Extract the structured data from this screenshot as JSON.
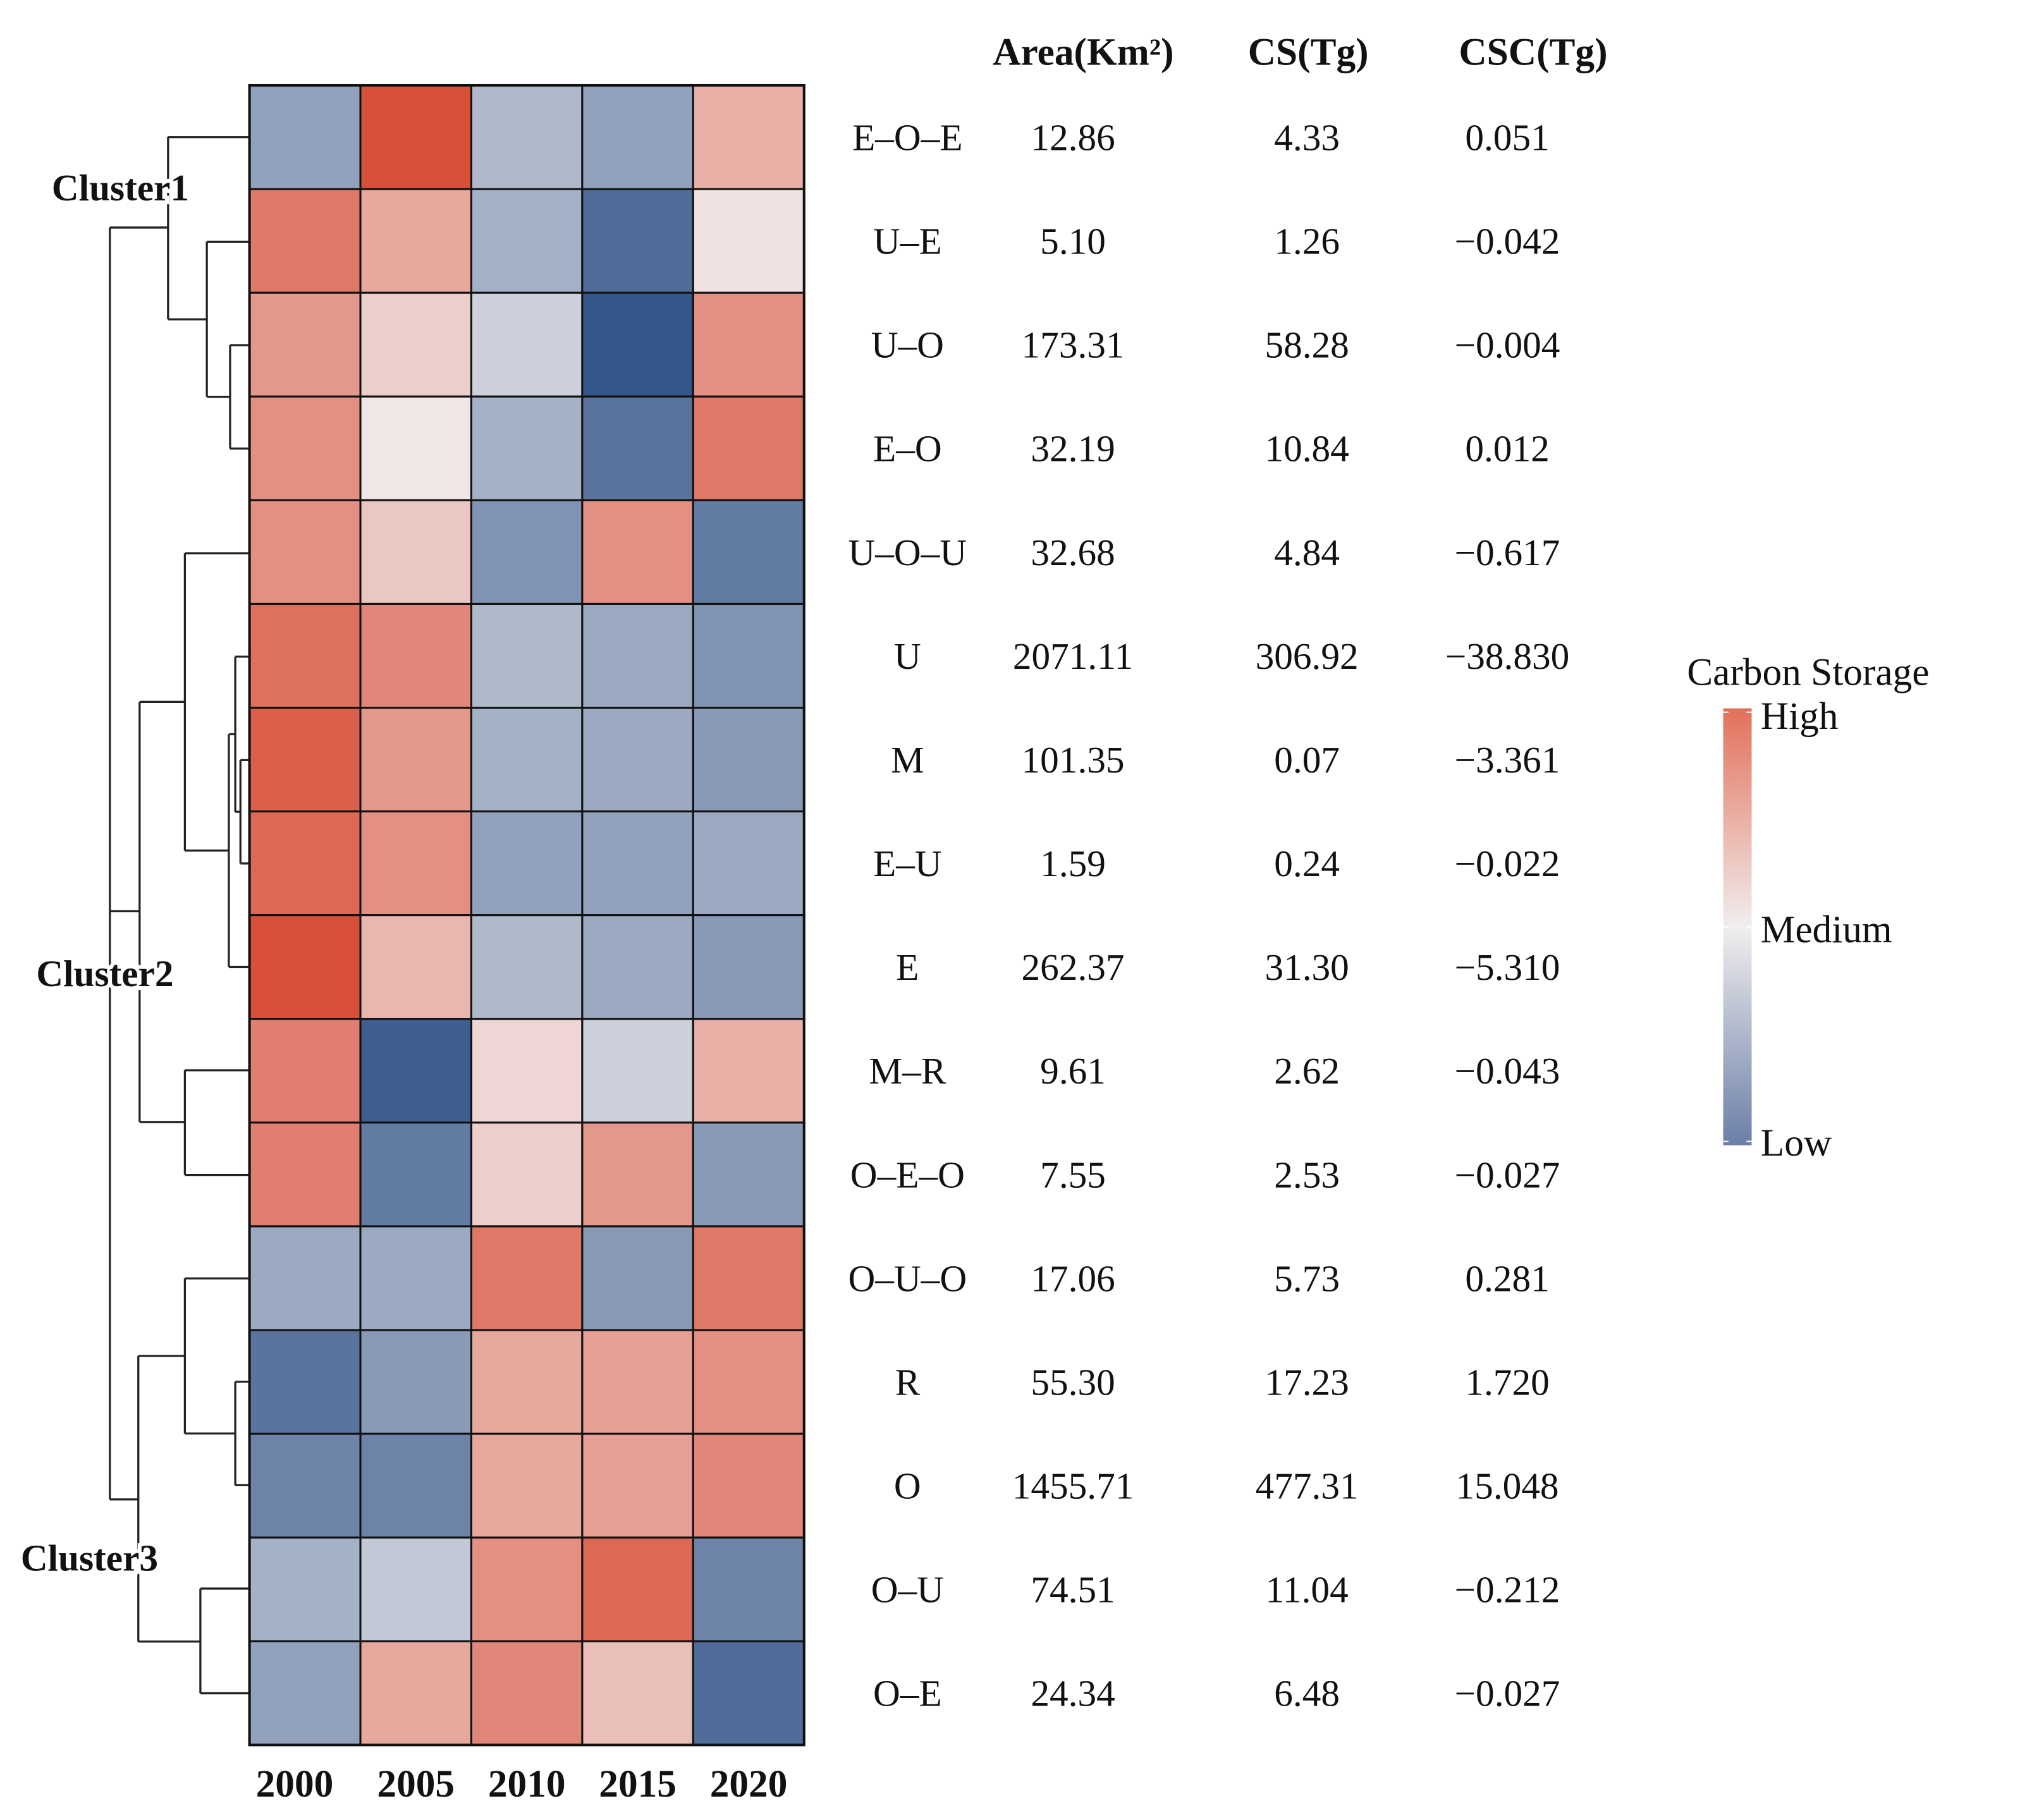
{
  "chart_data": {
    "type": "heatmap",
    "title": "",
    "xlabel": "",
    "ylabel": "",
    "x_categories": [
      "2000",
      "2005",
      "2010",
      "2015",
      "2020"
    ],
    "y_categories": [
      "E–O–E",
      "U–E",
      "U–O",
      "E–O",
      "U–O–U",
      "U",
      "M",
      "E–U",
      "E",
      "M–R",
      "O–E–O",
      "O–U–O",
      "R",
      "O",
      "O–U",
      "O–E"
    ],
    "value_scale": "relative carbon storage, -1 = Low, 0 = Medium, 1 = High (estimated from colour)",
    "values": [
      [
        -0.5,
        1.0,
        -0.35,
        -0.5,
        0.4
      ],
      [
        0.75,
        0.45,
        -0.4,
        -0.85,
        0.08
      ],
      [
        0.55,
        0.2,
        -0.2,
        -1.0,
        0.6
      ],
      [
        0.6,
        0.05,
        -0.4,
        -0.8,
        0.75
      ],
      [
        0.6,
        0.25,
        -0.6,
        0.6,
        -0.75
      ],
      [
        0.8,
        0.65,
        -0.35,
        -0.45,
        -0.6
      ],
      [
        0.9,
        0.55,
        -0.4,
        -0.45,
        -0.55
      ],
      [
        0.85,
        0.6,
        -0.5,
        -0.5,
        -0.45
      ],
      [
        1.0,
        0.35,
        -0.35,
        -0.45,
        -0.55
      ],
      [
        0.7,
        -0.95,
        0.15,
        -0.2,
        0.4
      ],
      [
        0.7,
        -0.75,
        0.2,
        0.55,
        -0.55
      ],
      [
        -0.45,
        -0.45,
        0.75,
        -0.55,
        0.75
      ],
      [
        -0.8,
        -0.55,
        0.45,
        0.5,
        0.6
      ],
      [
        -0.7,
        -0.7,
        0.45,
        0.5,
        0.65
      ],
      [
        -0.4,
        -0.25,
        0.6,
        0.85,
        -0.7
      ],
      [
        -0.5,
        0.45,
        0.65,
        0.3,
        -0.85
      ]
    ],
    "clusters": [
      {
        "label": "Cluster1",
        "rows": [
          "E–O–E",
          "U–E",
          "U–O",
          "E–O"
        ]
      },
      {
        "label": "Cluster2",
        "rows": [
          "U–O–U",
          "U",
          "M",
          "E–U",
          "E",
          "M–R",
          "O–E–O"
        ]
      },
      {
        "label": "Cluster3",
        "rows": [
          "O–U–O",
          "R",
          "O",
          "O–U",
          "O–E"
        ]
      }
    ],
    "table": {
      "headers": [
        "Area(Km²)",
        "CS(Tg)",
        "CSC(Tg)"
      ],
      "rows": [
        [
          "12.86",
          "4.33",
          "0.051"
        ],
        [
          "5.10",
          "1.26",
          "−0.042"
        ],
        [
          "173.31",
          "58.28",
          "−0.004"
        ],
        [
          "32.19",
          "10.84",
          "0.012"
        ],
        [
          "32.68",
          "4.84",
          "−0.617"
        ],
        [
          "2071.11",
          "306.92",
          "−38.830"
        ],
        [
          "101.35",
          "0.07",
          "−3.361"
        ],
        [
          "1.59",
          "0.24",
          "−0.022"
        ],
        [
          "262.37",
          "31.30",
          "−5.310"
        ],
        [
          "9.61",
          "2.62",
          "−0.043"
        ],
        [
          "7.55",
          "2.53",
          "−0.027"
        ],
        [
          "17.06",
          "5.73",
          "0.281"
        ],
        [
          "55.30",
          "17.23",
          "1.720"
        ],
        [
          "1455.71",
          "477.31",
          "15.048"
        ],
        [
          "74.51",
          "11.04",
          "−0.212"
        ],
        [
          "24.34",
          "6.48",
          "−0.027"
        ]
      ]
    },
    "legend": {
      "title": "Carbon Storage",
      "high": "High",
      "medium": "Medium",
      "low": "Low",
      "placement": "right",
      "colors": {
        "high": "#d9503a",
        "medium": "#f1eeee",
        "low": "#34568a"
      }
    }
  }
}
